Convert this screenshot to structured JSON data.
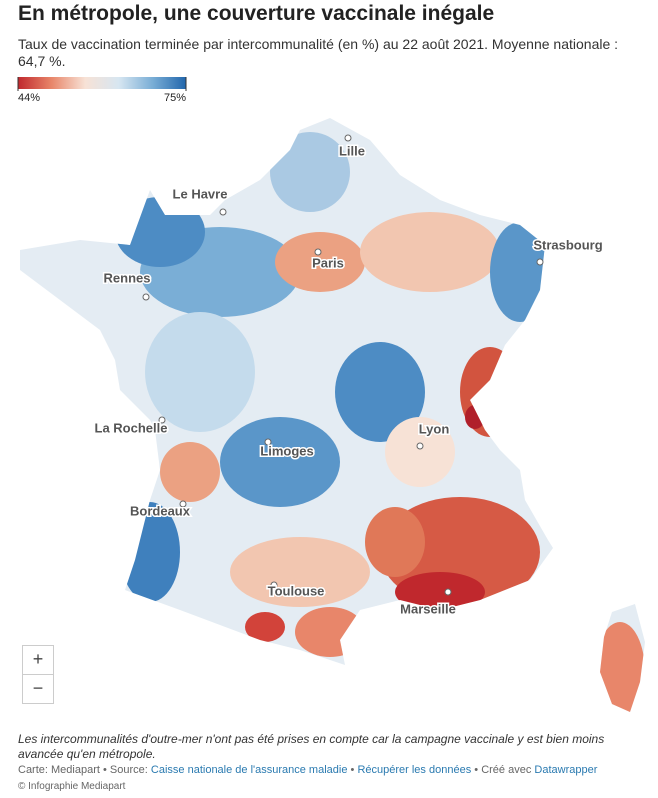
{
  "header": {
    "title": "En métropole, une couverture vaccinale inégale",
    "subtitle": "Taux de vaccination terminée par intercommunalité (en %) au 22 août 2021. Moyenne nationale : 64,7 %."
  },
  "legend": {
    "min": {
      "value": 44,
      "label": "44%"
    },
    "max": {
      "value": 75,
      "label": "75%"
    },
    "colors": [
      "#c0282d",
      "#e8866a",
      "#f7e2d6",
      "#d7e6f1",
      "#7aaed6",
      "#2166ac"
    ]
  },
  "cities": [
    "Lille",
    "Le Havre",
    "Strasbourg",
    "Paris",
    "Rennes",
    "La Rochelle",
    "Lyon",
    "Limoges",
    "Bordeaux",
    "Toulouse",
    "Marseille"
  ],
  "zoom": {
    "in": "+",
    "out": "−"
  },
  "footnote": "Les intercommunalités d'outre-mer n'ont pas été prises en compte car la campagne vaccinale y est bien moins avancée qu'en métropole.",
  "source": {
    "credit": "Carte: Mediapart",
    "separator": "•",
    "source_label": "Source:",
    "source_link": "Caisse nationale de l'assurance maladie",
    "data_link": "Récupérer les données",
    "made_with": "Créé avec",
    "tool_link": "Datawrapper"
  },
  "copyright": "© Infographie Mediapart"
}
